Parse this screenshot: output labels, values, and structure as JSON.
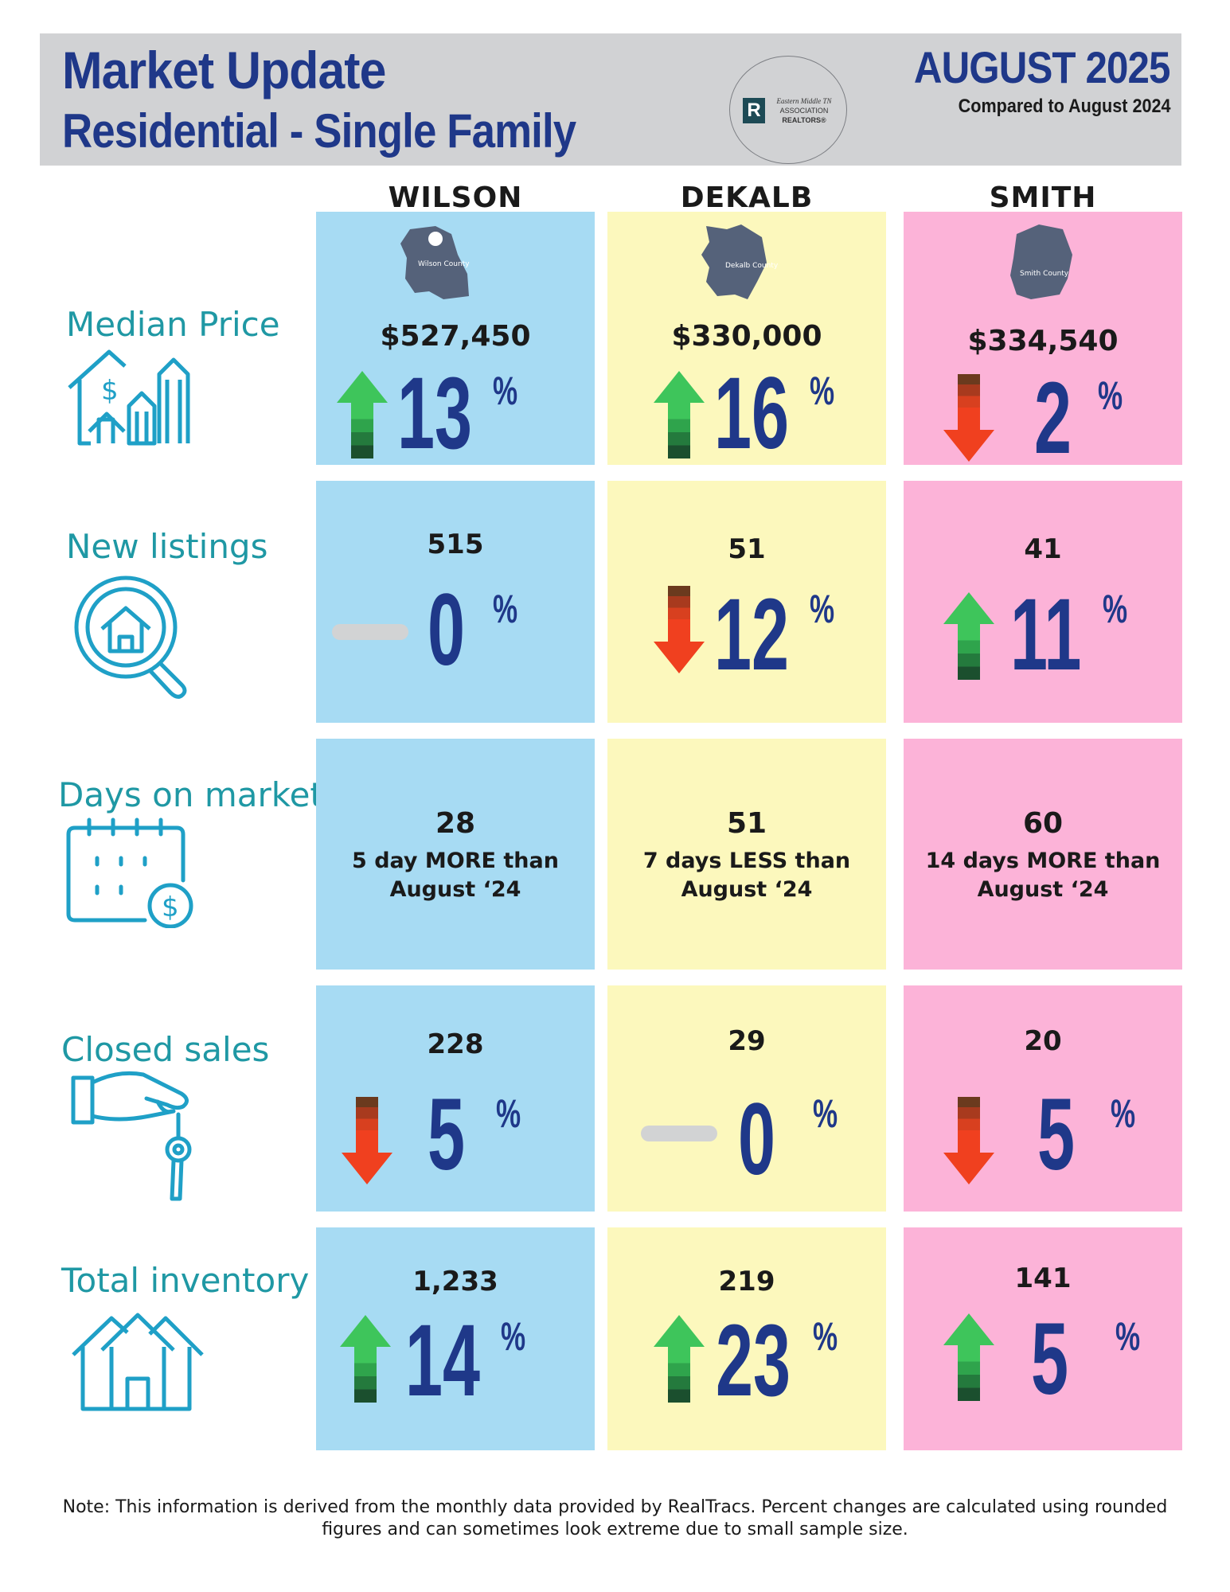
{
  "header": {
    "title_line1": "Market Update",
    "title_line2": "Residential - Single Family",
    "month": "AUGUST 2025",
    "compared": "Compared to August 2024",
    "logo": {
      "mark": "R",
      "line1": "Eastern Middle TN",
      "line2": "ASSOCIATION",
      "line3": "REALTORS®"
    }
  },
  "counties": [
    {
      "name": "WILSON",
      "map_label": "Wilson County",
      "color": "#a7dbf3"
    },
    {
      "name": "DEKALB",
      "map_label": "Dekalb County",
      "color": "#fcf8bd"
    },
    {
      "name": "SMITH",
      "map_label": "Smith County",
      "color": "#fcb3d8"
    }
  ],
  "rows": {
    "median_price": {
      "label": "Median Price",
      "icon": "house-dollar-growth-icon",
      "cells": [
        {
          "value": "$527,450",
          "trend": "up",
          "pct": "13",
          "sign": "%"
        },
        {
          "value": "$330,000",
          "trend": "up",
          "pct": "16",
          "sign": "%"
        },
        {
          "value": "$334,540",
          "trend": "down",
          "pct": "2",
          "sign": "%"
        }
      ]
    },
    "new_listings": {
      "label": "New listings",
      "icon": "house-magnifier-icon",
      "cells": [
        {
          "value": "515",
          "trend": "flat",
          "pct": "0",
          "sign": "%"
        },
        {
          "value": "51",
          "trend": "down",
          "pct": "12",
          "sign": "%"
        },
        {
          "value": "41",
          "trend": "up",
          "pct": "11",
          "sign": "%"
        }
      ]
    },
    "days_on_market": {
      "label": "Days on market",
      "icon": "calendar-dollar-icon",
      "cells": [
        {
          "value": "28",
          "line1": "5 day MORE than",
          "line2": "August ‘24"
        },
        {
          "value": "51",
          "line1": "7 days LESS than",
          "line2": "August ‘24"
        },
        {
          "value": "60",
          "line1": "14 days MORE than",
          "line2": "August ‘24"
        }
      ]
    },
    "closed_sales": {
      "label": "Closed sales",
      "icon": "hand-key-icon",
      "cells": [
        {
          "value": "228",
          "trend": "down",
          "pct": "5",
          "sign": "%"
        },
        {
          "value": "29",
          "trend": "flat",
          "pct": "0",
          "sign": "%"
        },
        {
          "value": "20",
          "trend": "down",
          "pct": "5",
          "sign": "%"
        }
      ]
    },
    "total_inventory": {
      "label": "Total inventory",
      "icon": "houses-icon",
      "cells": [
        {
          "value": "1,233",
          "trend": "up",
          "pct": "14",
          "sign": "%"
        },
        {
          "value": "219",
          "trend": "up",
          "pct": "23",
          "sign": "%"
        },
        {
          "value": "141",
          "trend": "up",
          "pct": "5",
          "sign": "%"
        }
      ]
    }
  },
  "colors": {
    "header_bg": "#d1d2d4",
    "title": "#1f3889",
    "label": "#1f98a4",
    "up_arrow": "#3ec55b",
    "down_arrow": "#f0401f",
    "flat_dash": "#d2d3d4"
  },
  "note": "Note: This information is derived from the monthly data provided by RealTracs. Percent changes are calculated using rounded figures and can sometimes look extreme due to small sample size."
}
